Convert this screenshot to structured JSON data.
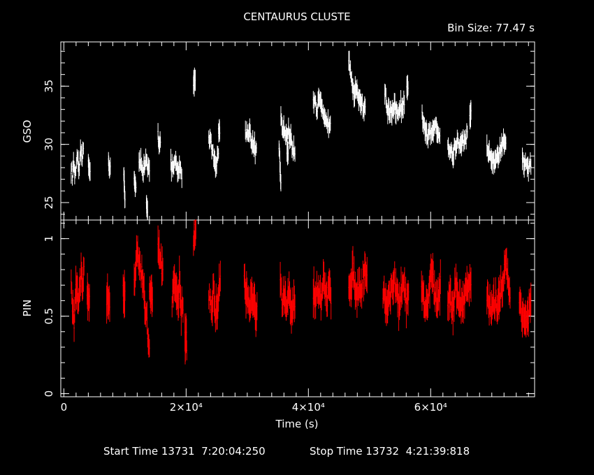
{
  "title": "CENTAURUS CLUSTE",
  "bin_size": "Bin Size: 77.47 s",
  "xlabel": "Time (s)",
  "footer": {
    "start": "Start Time 13731  7:20:04:250",
    "stop": "Stop Time 13732  4:21:39:818"
  },
  "colors": {
    "gso": "#ffffff",
    "pin": "#ff0000",
    "axes": "#ffffff",
    "background": "#000000"
  },
  "chart_data": [
    {
      "type": "scatter",
      "name": "GSO",
      "ylabel": "GSO",
      "xlim": [
        -500,
        77000
      ],
      "ylim": [
        23.5,
        38.8
      ],
      "yticks": [
        25,
        30,
        35
      ],
      "xtick_labels": [
        "0",
        "2×10⁴",
        "4×10⁴",
        "6×10⁴"
      ],
      "xtick_values": [
        0,
        20000,
        40000,
        60000
      ],
      "series": [
        {
          "name": "GSO",
          "segments": [
            {
              "x0": 1200,
              "x1": 3200,
              "y": [
                27.9,
                27.3,
                28.4,
                27.1,
                28.9,
                28.2,
                27.8,
                29.2,
                28.5,
                29.9
              ]
            },
            {
              "x0": 4000,
              "x1": 4300,
              "y": [
                28.1,
                28.0
              ]
            },
            {
              "x0": 7300,
              "x1": 7600,
              "y": [
                28.3,
                27.9
              ]
            },
            {
              "x0": 9800,
              "x1": 10000,
              "y": [
                27.5,
                25.0
              ]
            },
            {
              "x0": 11500,
              "x1": 11800,
              "y": [
                27.3,
                26.1
              ]
            },
            {
              "x0": 12300,
              "x1": 14000,
              "y": [
                28.2,
                28.5,
                27.8,
                28.6,
                28.0,
                27.6
              ]
            },
            {
              "x0": 13500,
              "x1": 13700,
              "y": [
                24.6
              ]
            },
            {
              "x0": 15400,
              "x1": 15800,
              "y": [
                31.0,
                30.2,
                29.8,
                30.4
              ]
            },
            {
              "x0": 17500,
              "x1": 19300,
              "y": [
                28.2,
                27.9,
                28.4,
                27.6,
                27.9,
                27.3
              ]
            },
            {
              "x0": 21200,
              "x1": 21500,
              "y": [
                35.5
              ]
            },
            {
              "x0": 23700,
              "x1": 25300,
              "y": [
                30.8,
                30.3,
                29.2,
                28.8,
                28.2,
                29.5
              ]
            },
            {
              "x0": 25300,
              "x1": 25500,
              "y": [
                31.2
              ]
            },
            {
              "x0": 29700,
              "x1": 31500,
              "y": [
                31.2,
                30.8,
                31.4,
                30.6,
                30.0,
                29.7,
                29.3
              ]
            },
            {
              "x0": 35200,
              "x1": 35500,
              "y": [
                29.8,
                26.4
              ]
            },
            {
              "x0": 35500,
              "x1": 37800,
              "y": [
                32.0,
                31.3,
                31.0,
                30.8,
                31.2,
                30.4,
                29.6,
                29.1
              ]
            },
            {
              "x0": 36500,
              "x1": 36700,
              "y": [
                29.5
              ]
            },
            {
              "x0": 40800,
              "x1": 43600,
              "y": [
                34.0,
                33.5,
                32.8,
                33.9,
                33.2,
                32.6,
                31.9,
                32.4,
                31.6,
                32.2
              ]
            },
            {
              "x0": 46600,
              "x1": 49300,
              "y": [
                37.6,
                36.5,
                35.4,
                34.3,
                34.8,
                33.8,
                34.2,
                33.6,
                33.0,
                33.4
              ]
            },
            {
              "x0": 52500,
              "x1": 55700,
              "y": [
                34.5,
                33.4,
                32.7,
                33.1,
                32.6,
                33.3,
                32.8,
                32.3,
                33.4,
                32.9,
                33.8
              ]
            },
            {
              "x0": 56100,
              "x1": 56300,
              "y": [
                34.6
              ]
            },
            {
              "x0": 58600,
              "x1": 61500,
              "y": [
                32.6,
                31.7,
                31.0,
                30.4,
                31.2,
                30.6,
                31.5,
                31.9,
                31.1,
                30.8
              ]
            },
            {
              "x0": 62800,
              "x1": 66000,
              "y": [
                30.0,
                29.4,
                29.1,
                29.8,
                30.3,
                29.6,
                30.6,
                30.1,
                30.9
              ]
            },
            {
              "x0": 66400,
              "x1": 66600,
              "y": [
                32.6
              ]
            },
            {
              "x0": 69200,
              "x1": 72300,
              "y": [
                29.6,
                29.3,
                28.7,
                28.3,
                28.9,
                29.1,
                29.8,
                30.1,
                30.4
              ]
            },
            {
              "x0": 75000,
              "x1": 76400,
              "y": [
                28.6,
                28.2,
                28.4,
                27.9,
                28.5
              ]
            }
          ]
        }
      ]
    },
    {
      "type": "scatter",
      "name": "PIN",
      "ylabel": "PIN",
      "xlim": [
        -500,
        77000
      ],
      "ylim": [
        -0.02,
        1.12
      ],
      "yticks": [
        0,
        0.5,
        1
      ],
      "xtick_labels": [
        "0",
        "2×10⁴",
        "4×10⁴",
        "6×10⁴"
      ],
      "xtick_values": [
        0,
        20000,
        40000,
        60000
      ],
      "series": [
        {
          "name": "PIN",
          "segments": [
            {
              "x0": 1200,
              "x1": 3300,
              "y": [
                0.72,
                0.55,
                0.42,
                0.66,
                0.74,
                0.61,
                0.7,
                0.78,
                0.63,
                0.84
              ]
            },
            {
              "x0": 3800,
              "x1": 4200,
              "y": [
                0.66,
                0.58
              ]
            },
            {
              "x0": 7000,
              "x1": 7500,
              "y": [
                0.62,
                0.6
              ]
            },
            {
              "x0": 9700,
              "x1": 10000,
              "y": [
                0.66
              ]
            },
            {
              "x0": 11500,
              "x1": 14000,
              "y": [
                0.7,
                0.86,
                0.9,
                0.82,
                0.78,
                0.74,
                0.62,
                0.5,
                0.4,
                0.28
              ]
            },
            {
              "x0": 14000,
              "x1": 14500,
              "y": [
                0.66,
                0.58
              ]
            },
            {
              "x0": 15400,
              "x1": 16200,
              "y": [
                0.94,
                0.86,
                0.74
              ]
            },
            {
              "x0": 17700,
              "x1": 19500,
              "y": [
                0.62,
                0.76,
                0.66,
                0.58,
                0.72,
                0.54,
                0.6
              ]
            },
            {
              "x0": 19800,
              "x1": 20100,
              "y": [
                0.34
              ]
            },
            {
              "x0": 21200,
              "x1": 21600,
              "y": [
                0.96,
                1.08
              ]
            },
            {
              "x0": 23700,
              "x1": 25600,
              "y": [
                0.64,
                0.6,
                0.54,
                0.66,
                0.52,
                0.58,
                0.64,
                0.74
              ]
            },
            {
              "x0": 29500,
              "x1": 31600,
              "y": [
                0.72,
                0.66,
                0.6,
                0.56,
                0.62,
                0.58,
                0.54,
                0.52
              ]
            },
            {
              "x0": 35400,
              "x1": 37800,
              "y": [
                0.71,
                0.58,
                0.62,
                0.55,
                0.6,
                0.64,
                0.52,
                0.57,
                0.61
              ]
            },
            {
              "x0": 40800,
              "x1": 43700,
              "y": [
                0.67,
                0.62,
                0.7,
                0.64,
                0.58,
                0.72,
                0.66,
                0.61,
                0.68,
                0.63
              ]
            },
            {
              "x0": 46600,
              "x1": 49600,
              "y": [
                0.74,
                0.7,
                0.78,
                0.72,
                0.66,
                0.7,
                0.64,
                0.76,
                0.82,
                0.74
              ]
            },
            {
              "x0": 52200,
              "x1": 56400,
              "y": [
                0.66,
                0.6,
                0.56,
                0.64,
                0.7,
                0.74,
                0.62,
                0.55,
                0.68,
                0.72,
                0.58,
                0.62
              ]
            },
            {
              "x0": 58500,
              "x1": 61600,
              "y": [
                0.66,
                0.58,
                0.52,
                0.6,
                0.74,
                0.8,
                0.68,
                0.62,
                0.58,
                0.72
              ]
            },
            {
              "x0": 62800,
              "x1": 66600,
              "y": [
                0.58,
                0.62,
                0.55,
                0.7,
                0.64,
                0.56,
                0.6,
                0.68,
                0.74,
                0.66
              ]
            },
            {
              "x0": 69200,
              "x1": 73000,
              "y": [
                0.63,
                0.56,
                0.52,
                0.6,
                0.58,
                0.64,
                0.7,
                0.86,
                0.74,
                0.62
              ]
            },
            {
              "x0": 74500,
              "x1": 76400,
              "y": [
                0.6,
                0.54,
                0.5,
                0.46,
                0.52,
                0.56
              ]
            }
          ]
        }
      ]
    }
  ]
}
